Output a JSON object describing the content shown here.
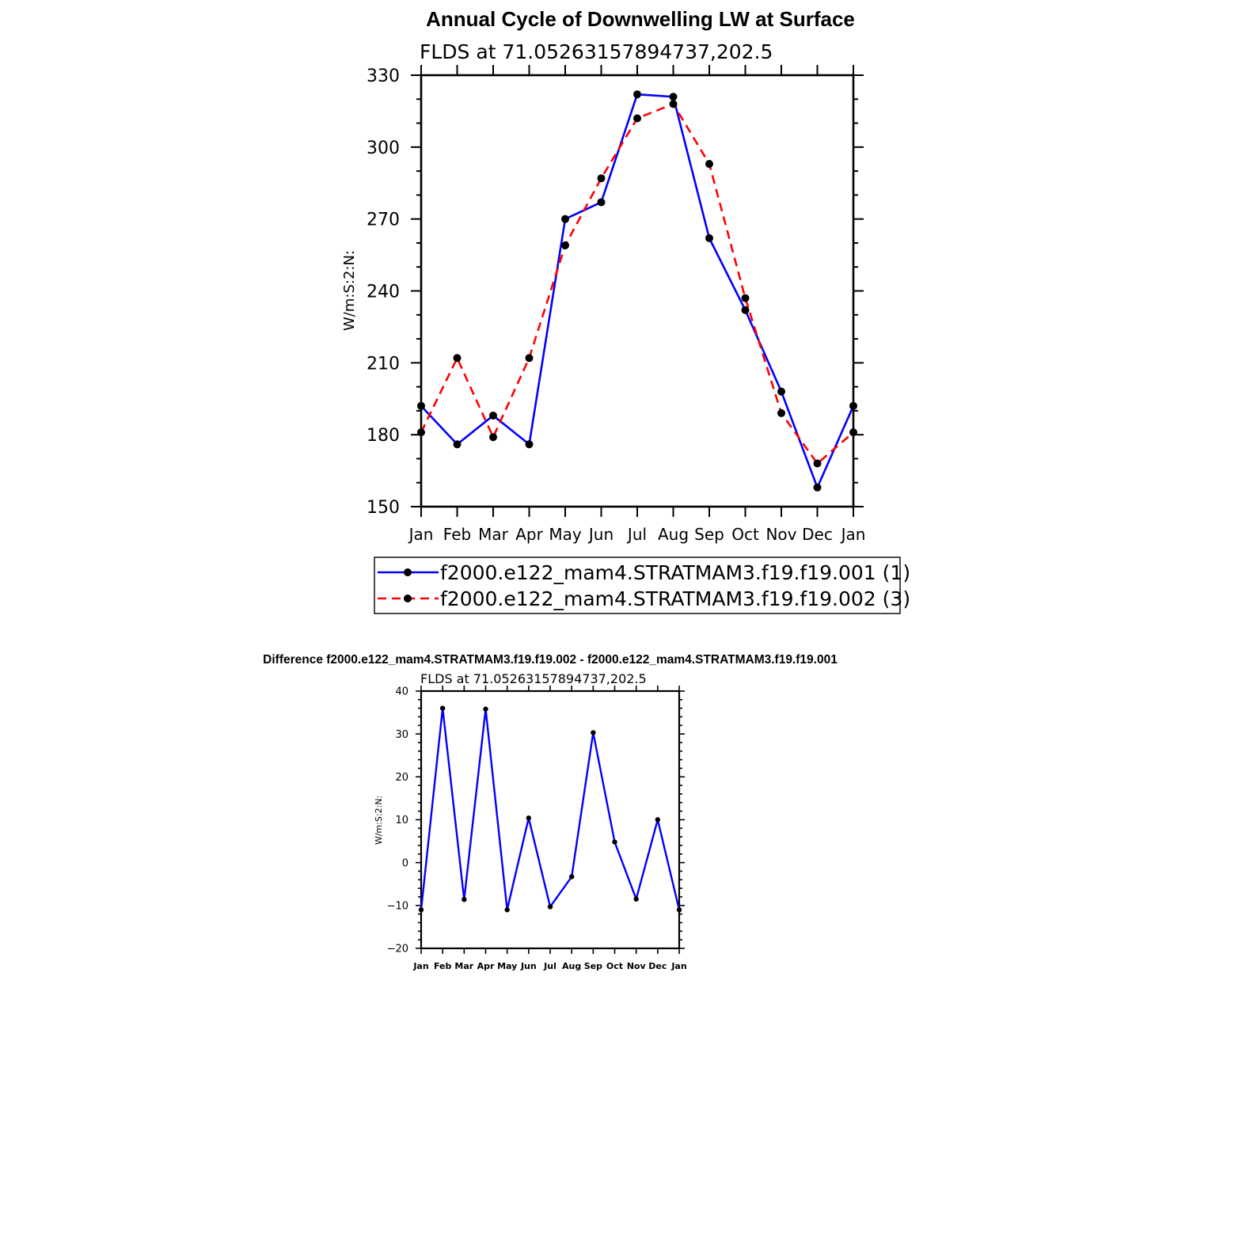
{
  "chart_data": [
    {
      "type": "line",
      "title": "Annual Cycle of Downwelling LW at Surface",
      "subtitle": "FLDS at 71.05263157894737,202.5",
      "ylabel": "W/m:S:2:N:",
      "xlabel": "",
      "categories": [
        "Jan",
        "Feb",
        "Mar",
        "Apr",
        "May",
        "Jun",
        "Jul",
        "Aug",
        "Sep",
        "Oct",
        "Nov",
        "Dec",
        "Jan"
      ],
      "ylim": [
        150,
        330
      ],
      "yticks": [
        "150",
        "180",
        "210",
        "240",
        "270",
        "300",
        "330"
      ],
      "legend_position": "bottom",
      "series": [
        {
          "name": "f2000.e122_mam4.STRATMAM3.f19.f19.001 (1)",
          "color": "#0000ff",
          "dash": "solid",
          "values": [
            192,
            176,
            188,
            176,
            270,
            277,
            322,
            321,
            262,
            232,
            198,
            158,
            192
          ]
        },
        {
          "name": "f2000.e122_mam4.STRATMAM3.f19.f19.002 (3)",
          "color": "#ff0000",
          "dash": "dashed",
          "values": [
            181,
            212,
            179,
            212,
            259,
            287,
            312,
            318,
            293,
            237,
            189,
            168,
            181
          ]
        }
      ]
    },
    {
      "type": "line",
      "title": "Difference f2000.e122_mam4.STRATMAM3.f19.f19.002 - f2000.e122_mam4.STRATMAM3.f19.f19.001",
      "subtitle": "FLDS at 71.05263157894737,202.5",
      "ylabel": "W/m:S:2:N:",
      "xlabel": "",
      "categories": [
        "Jan",
        "Feb",
        "Mar",
        "Apr",
        "May",
        "Jun",
        "Jul",
        "Aug",
        "Sep",
        "Oct",
        "Nov",
        "Dec",
        "Jan"
      ],
      "ylim": [
        -20,
        40
      ],
      "yticks": [
        "−20",
        "−10",
        "0",
        "10",
        "20",
        "30",
        "40"
      ],
      "series": [
        {
          "color": "#0000ff",
          "dash": "solid",
          "values": [
            -11,
            36,
            -8.6,
            35.8,
            -11,
            10.4,
            -10.3,
            -3.3,
            30.3,
            4.8,
            -8.5,
            10,
            -11
          ]
        }
      ]
    }
  ]
}
